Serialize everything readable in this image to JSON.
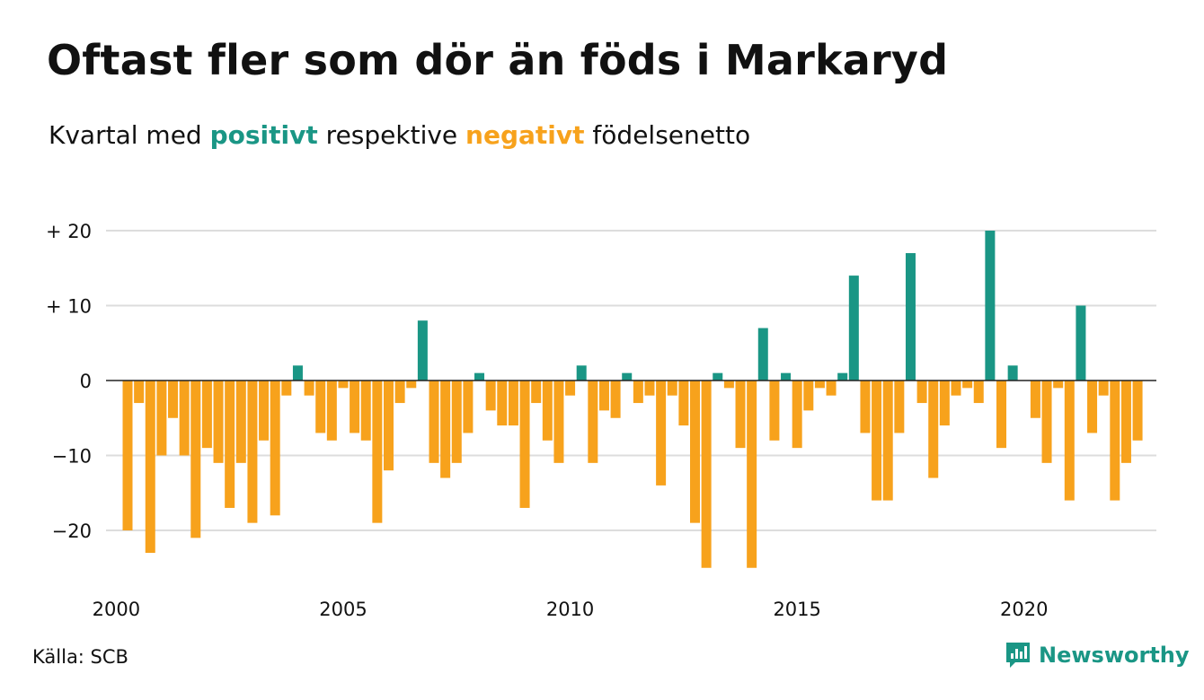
{
  "title": "Oftast fler som dör än föds i Markaryd",
  "subtitle": {
    "prefix": "Kvartal med ",
    "positive": "positivt",
    "middle": " respektive ",
    "negative": "negativt",
    "suffix": " födelsenetto"
  },
  "source": "Källa: SCB",
  "brand": "Newsworthy",
  "colors": {
    "positive": "#1a9685",
    "negative": "#f7a21c",
    "grid": "#dddddd",
    "zero": "#222222"
  },
  "chart_data": {
    "type": "bar",
    "x_start_year": 2000,
    "x_start_quarter": 2,
    "values": [
      -20,
      -3,
      -23,
      -10,
      -5,
      -10,
      -21,
      -9,
      -11,
      -17,
      -11,
      -19,
      -8,
      -18,
      -2,
      2,
      -2,
      -7,
      -8,
      -1,
      -7,
      -8,
      -19,
      -12,
      -3,
      -1,
      8,
      -11,
      -13,
      -11,
      -7,
      1,
      -4,
      -6,
      -6,
      -17,
      -3,
      -8,
      -11,
      -2,
      2,
      -11,
      -4,
      -5,
      1,
      -3,
      -2,
      -14,
      -2,
      -6,
      -19,
      -25,
      1,
      -1,
      -9,
      -25,
      7,
      -8,
      1,
      -9,
      -4,
      -1,
      -2,
      1,
      14,
      -7,
      -16,
      -16,
      -7,
      17,
      -3,
      -13,
      -6,
      -2,
      -1,
      -3,
      20,
      -9,
      2,
      0,
      -5,
      -11,
      -1,
      -16,
      10,
      -7,
      -2,
      -16,
      -11,
      -8
    ],
    "x_ticks": [
      "2000",
      "2005",
      "2010",
      "2015",
      "2020"
    ],
    "y_ticks": [
      {
        "value": 20,
        "label": "+ 20"
      },
      {
        "value": 10,
        "label": "+ 10"
      },
      {
        "value": 0,
        "label": "0"
      },
      {
        "value": -10,
        "label": "−10"
      },
      {
        "value": -20,
        "label": "−20"
      }
    ],
    "ylim": [
      -26,
      21
    ],
    "grid": true
  }
}
